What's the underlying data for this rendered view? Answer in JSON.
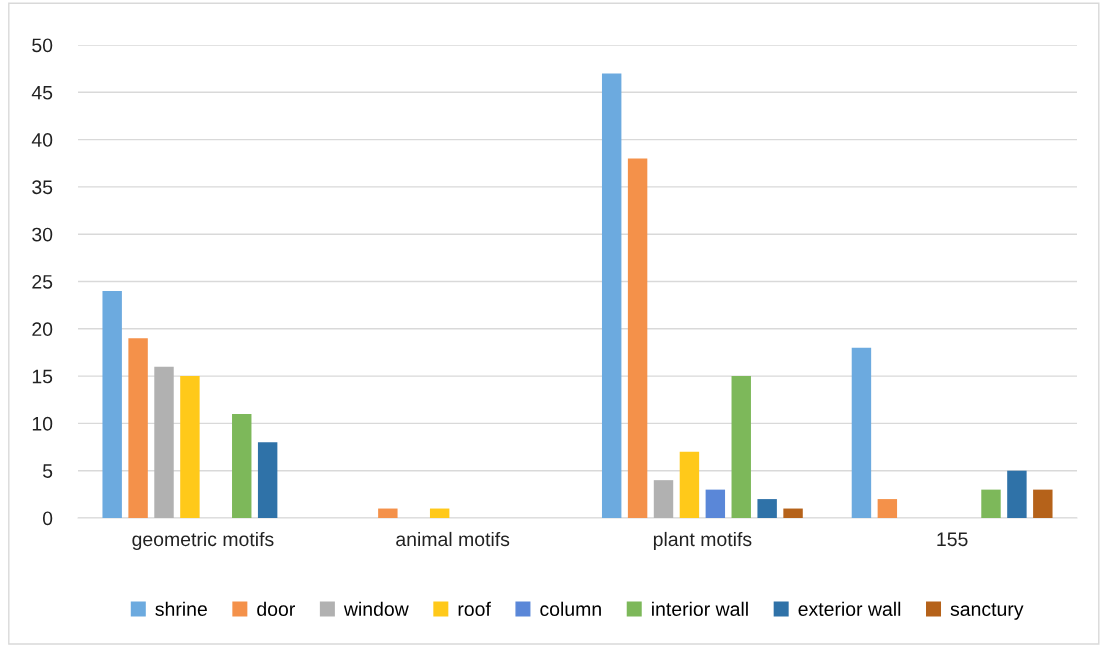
{
  "chart_data": {
    "type": "bar",
    "categories": [
      "geometric motifs",
      "animal motifs",
      "plant motifs",
      "155"
    ],
    "series": [
      {
        "name": "shrine",
        "color": "#6caadf",
        "values": [
          24,
          null,
          47,
          18
        ]
      },
      {
        "name": "door",
        "color": "#f4914a",
        "values": [
          19,
          1,
          38,
          2
        ]
      },
      {
        "name": "window",
        "color": "#b1b1b1",
        "values": [
          16,
          null,
          4,
          null
        ]
      },
      {
        "name": "roof",
        "color": "#ffc91a",
        "values": [
          15,
          1,
          7,
          null
        ]
      },
      {
        "name": "column",
        "color": "#5a87d8",
        "values": [
          null,
          null,
          3,
          null
        ]
      },
      {
        "name": "interior wall",
        "color": "#7db85a",
        "values": [
          11,
          null,
          15,
          3
        ]
      },
      {
        "name": "exterior wall",
        "color": "#2f72a8",
        "values": [
          8,
          null,
          2,
          5
        ]
      },
      {
        "name": "sanctury",
        "color": "#b5621a",
        "values": [
          null,
          null,
          1,
          3
        ]
      }
    ],
    "ylim": [
      0,
      50
    ],
    "yticks": [
      0,
      5,
      10,
      15,
      20,
      25,
      30,
      35,
      40,
      45,
      50
    ],
    "grid": "y",
    "legend": "bottom"
  }
}
